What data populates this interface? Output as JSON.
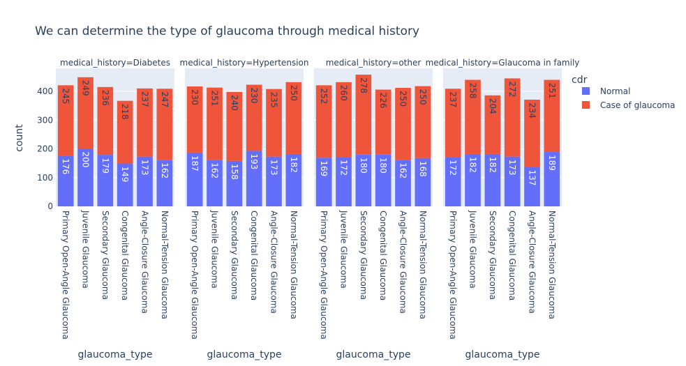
{
  "chart_data": {
    "type": "bar",
    "barmode": "stack",
    "title": "We can determine the type of glaucoma through medical history",
    "xlabel": "glaucoma_type",
    "ylabel": "count",
    "ylim": [
      0,
      480
    ],
    "yticks": [
      0,
      100,
      200,
      300,
      400
    ],
    "grid": true,
    "legend": {
      "title": "cdr",
      "placement": "top-right"
    },
    "categories": [
      "Primary Open-Angle Glaucoma",
      "Juvenile Glaucoma",
      "Secondary Glaucoma",
      "Congenital Glaucoma",
      "Angle-Closure Glaucoma",
      "Normal-Tension Glaucoma"
    ],
    "series_styles": [
      {
        "name": "Normal",
        "color": "#636efa",
        "text_color": "#ffffff"
      },
      {
        "name": "Case of glaucoma",
        "color": "#ef553b",
        "text_color": "#2a3f5f"
      }
    ],
    "facets": [
      {
        "title": "medical_history=Diabetes",
        "series": [
          {
            "name": "Normal",
            "values": [
              176,
              200,
              179,
              149,
              173,
              162
            ]
          },
          {
            "name": "Case of glaucoma",
            "values": [
              245,
              249,
              236,
              218,
              237,
              247
            ]
          }
        ]
      },
      {
        "title": "medical_history=Hypertension",
        "series": [
          {
            "name": "Normal",
            "values": [
              187,
              162,
              158,
              193,
              173,
              182
            ]
          },
          {
            "name": "Case of glaucoma",
            "values": [
              230,
              251,
              240,
              230,
              235,
              250
            ]
          }
        ]
      },
      {
        "title": "medical_history=other",
        "series": [
          {
            "name": "Normal",
            "values": [
              169,
              172,
              180,
              180,
              162,
              168
            ]
          },
          {
            "name": "Case of glaucoma",
            "values": [
              252,
              260,
              278,
              226,
              250,
              250
            ]
          }
        ]
      },
      {
        "title": "medical_history=Glaucoma in family",
        "series": [
          {
            "name": "Normal",
            "values": [
              172,
              182,
              182,
              173,
              137,
              189
            ]
          },
          {
            "name": "Case of glaucoma",
            "values": [
              237,
              258,
              204,
              272,
              234,
              251
            ]
          }
        ]
      }
    ]
  },
  "colors": {
    "plot_bg": "#e5ecf6",
    "grid": "#ffffff",
    "text": "#2a3f5f"
  }
}
